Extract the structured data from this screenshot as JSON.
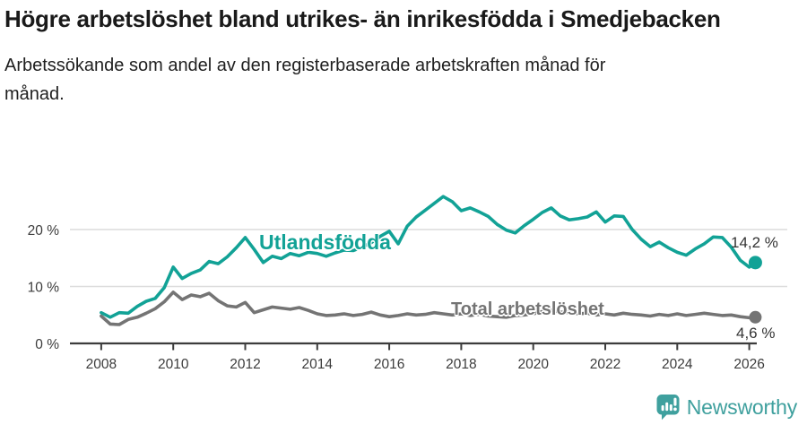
{
  "header": {
    "title": "Högre arbetslöshet bland utrikes- än inrikesfödda i Smedjebacken",
    "subtitle": "Arbetssökande som andel av den registerbaserade arbetskraften månad för\nmånad."
  },
  "footer": {
    "brand": "Newsworthy"
  },
  "colors": {
    "accent_teal": "#12a296",
    "series_gray": "#747474",
    "axis": "#3c3c3c",
    "grid": "#dcdcdc",
    "tick_text": "#3c3c3c",
    "value_text": "#333333",
    "brand_teal": "#3fa09e"
  },
  "chart_data": {
    "type": "line",
    "unit": "%",
    "title": "Högre arbetslöshet bland utrikes- än inrikesfödda i Smedjebacken",
    "xlabel": "",
    "ylabel": "",
    "grid": "horizontal",
    "ylim": [
      0,
      27
    ],
    "xlim": [
      2007.6,
      2026.6
    ],
    "x_ticks": [
      2008,
      2010,
      2012,
      2014,
      2016,
      2018,
      2020,
      2022,
      2024,
      2026
    ],
    "y_ticks": [
      {
        "value": 0,
        "label": "0 %"
      },
      {
        "value": 10,
        "label": "10 %"
      },
      {
        "value": 20,
        "label": "20 %"
      }
    ],
    "x": [
      2008,
      2008.25,
      2008.5,
      2008.75,
      2009,
      2009.25,
      2009.5,
      2009.75,
      2010,
      2010.25,
      2010.5,
      2010.75,
      2011,
      2011.25,
      2011.5,
      2011.75,
      2012,
      2012.25,
      2012.5,
      2012.75,
      2013,
      2013.25,
      2013.5,
      2013.75,
      2014,
      2014.25,
      2014.5,
      2014.75,
      2015,
      2015.25,
      2015.5,
      2015.75,
      2016,
      2016.25,
      2016.5,
      2016.75,
      2017,
      2017.25,
      2017.5,
      2017.75,
      2018,
      2018.25,
      2018.5,
      2018.75,
      2019,
      2019.25,
      2019.5,
      2019.75,
      2020,
      2020.25,
      2020.5,
      2020.75,
      2021,
      2021.25,
      2021.5,
      2021.75,
      2022,
      2022.25,
      2022.5,
      2022.75,
      2023,
      2023.25,
      2023.5,
      2023.75,
      2024,
      2024.25,
      2024.5,
      2024.75,
      2025,
      2025.25,
      2025.5,
      2025.75,
      2026,
      2026.17
    ],
    "series": [
      {
        "name": "Utlandsfödda",
        "color": "#12a296",
        "end_label": "14,2 %",
        "end_value": 14.2,
        "values": [
          5.4,
          4.6,
          5.4,
          5.3,
          6.5,
          7.4,
          7.9,
          9.8,
          13.4,
          11.4,
          12.3,
          12.9,
          14.4,
          14.0,
          15.2,
          16.8,
          18.6,
          16.5,
          14.2,
          15.3,
          14.9,
          15.8,
          15.4,
          16.0,
          15.8,
          15.3,
          15.9,
          16.4,
          16.3,
          16.9,
          17.7,
          18.8,
          19.7,
          17.5,
          20.6,
          22.2,
          23.4,
          24.6,
          25.8,
          24.9,
          23.3,
          23.8,
          23.1,
          22.3,
          20.9,
          19.9,
          19.4,
          20.7,
          21.8,
          23.0,
          23.8,
          22.4,
          21.7,
          21.9,
          22.2,
          23.1,
          21.3,
          22.4,
          22.3,
          20.0,
          18.3,
          17.0,
          17.8,
          16.8,
          16.0,
          15.5,
          16.6,
          17.5,
          18.7,
          18.6,
          16.9,
          14.6,
          13.4,
          14.2
        ]
      },
      {
        "name": "Total arbetslöshet",
        "color": "#747474",
        "end_label": "4,6 %",
        "end_value": 4.6,
        "values": [
          4.8,
          3.4,
          3.3,
          4.2,
          4.6,
          5.3,
          6.1,
          7.3,
          9.0,
          7.7,
          8.5,
          8.2,
          8.8,
          7.5,
          6.6,
          6.4,
          7.2,
          5.4,
          5.9,
          6.4,
          6.2,
          6.0,
          6.3,
          5.8,
          5.2,
          4.9,
          5.0,
          5.2,
          4.9,
          5.1,
          5.5,
          5.0,
          4.7,
          4.9,
          5.2,
          5.0,
          5.1,
          5.4,
          5.2,
          5.0,
          5.2,
          4.9,
          5.1,
          4.8,
          4.7,
          4.6,
          4.9,
          5.0,
          5.2,
          5.6,
          5.8,
          5.5,
          5.4,
          5.2,
          5.3,
          5.0,
          5.2,
          5.0,
          5.3,
          5.1,
          5.0,
          4.8,
          5.1,
          4.9,
          5.2,
          4.9,
          5.1,
          5.3,
          5.1,
          4.9,
          5.0,
          4.7,
          4.5,
          4.6
        ]
      }
    ],
    "legend_position": "inline-labels"
  }
}
